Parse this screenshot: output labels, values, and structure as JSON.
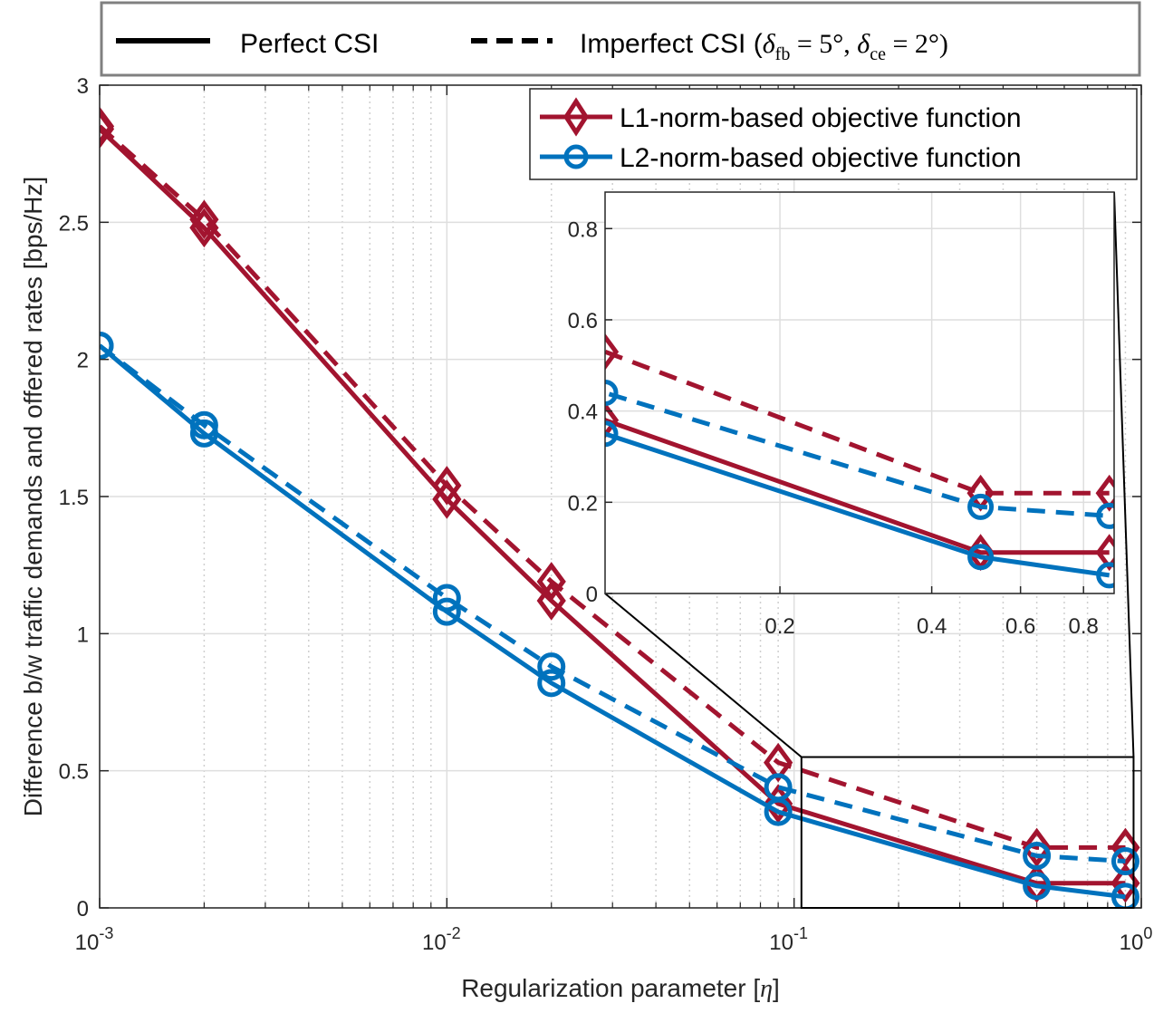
{
  "chart_data": {
    "type": "line",
    "xscale": "log",
    "xlim": [
      0.001,
      1
    ],
    "ylim": [
      0,
      3
    ],
    "xlabel": "Regularization parameter [",
    "xlabel_symbol": "η",
    "xlabel_end": "]",
    "ylabel": "Difference b/w traffic demands and offered rates [bps/Hz]",
    "x_ticks": [
      {
        "value": 0.001,
        "base": "10",
        "exp": "-3"
      },
      {
        "value": 0.01,
        "base": "10",
        "exp": "-2"
      },
      {
        "value": 0.1,
        "base": "10",
        "exp": "-1"
      },
      {
        "value": 1,
        "base": "10",
        "exp": "0"
      }
    ],
    "y_ticks": [
      "0",
      "0.5",
      "1",
      "1.5",
      "2",
      "2.5",
      "3"
    ],
    "grid": true,
    "x": [
      0.001,
      0.002,
      0.01,
      0.02,
      0.09,
      0.5,
      0.9
    ],
    "series": [
      {
        "name": "L1 perfect",
        "group": "L1",
        "style": "solid",
        "color": "#a2142f",
        "marker": "diamond",
        "values": [
          2.84,
          2.48,
          1.49,
          1.12,
          0.38,
          0.09,
          0.09
        ]
      },
      {
        "name": "L1 imperfect",
        "group": "L1",
        "style": "dashed",
        "color": "#a2142f",
        "marker": "diamond",
        "values": [
          2.85,
          2.51,
          1.54,
          1.19,
          0.53,
          0.22,
          0.22
        ]
      },
      {
        "name": "L2 perfect",
        "group": "L2",
        "style": "solid",
        "color": "#0072bd",
        "marker": "circle",
        "values": [
          2.05,
          1.73,
          1.08,
          0.82,
          0.35,
          0.08,
          0.04
        ]
      },
      {
        "name": "L2 imperfect",
        "group": "L2",
        "style": "dashed",
        "color": "#0072bd",
        "marker": "circle",
        "values": [
          2.05,
          1.76,
          1.13,
          0.88,
          0.44,
          0.19,
          0.17
        ]
      }
    ],
    "legend_top": {
      "solid_label": "Perfect CSI",
      "dashed_label_prefix": "Imperfect CSI (",
      "delta": "δ",
      "fb": "fb",
      "eq1": " = 5°, ",
      "ce": "ce",
      "eq2": " = 2°)"
    },
    "legend_inner": [
      {
        "label": "L1-norm-based objective function",
        "color": "#a2142f",
        "marker": "diamond"
      },
      {
        "label": "L2-norm-based objective function",
        "color": "#0072bd",
        "marker": "circle"
      }
    ],
    "inset": {
      "xlim": [
        0.09,
        0.92
      ],
      "ylim": [
        0,
        0.88
      ],
      "x_ticks": [
        "0.2",
        "0.4",
        "0.6",
        "0.8"
      ],
      "x_tick_values": [
        0.2,
        0.4,
        0.6,
        0.8
      ],
      "y_ticks": [
        "0",
        "0.2",
        "0.4",
        "0.6",
        "0.8"
      ],
      "y_tick_values": [
        0,
        0.2,
        0.4,
        0.6,
        0.8
      ],
      "zoom_x": [
        0.105,
        0.95
      ],
      "zoom_y": [
        0,
        0.55
      ]
    }
  }
}
